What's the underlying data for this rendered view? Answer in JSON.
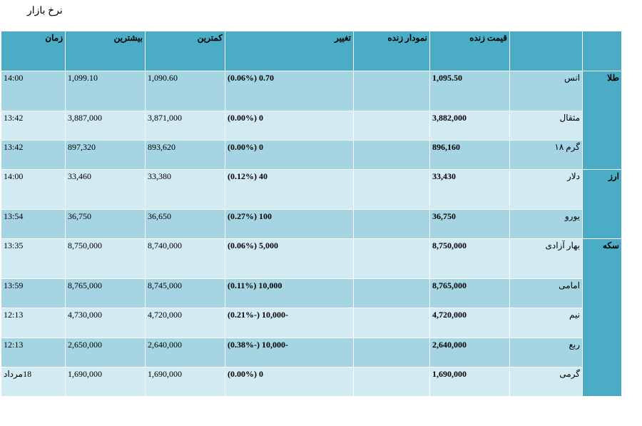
{
  "page": {
    "title": "نرخ بازار"
  },
  "table": {
    "headers": {
      "category": "",
      "item": "",
      "live_price": "قیمت زنده",
      "live_chart": "نمودار زنده",
      "change": "تغییر",
      "low": "کمترین",
      "high": "بیشترین",
      "time": "زمان"
    },
    "groups": [
      {
        "label": "طلا"
      },
      {
        "label": "ارز"
      },
      {
        "label": "سکه"
      }
    ],
    "rows": [
      {
        "name": "انس",
        "price": "1,095.50",
        "chart": "",
        "change": "0.70 (0.06%)",
        "low": "1,090.60",
        "high": "1,099.10",
        "time": "14:00"
      },
      {
        "name": "مثقال",
        "price": "3,882,000",
        "chart": "",
        "change": "0 (0.00%)",
        "low": "3,871,000",
        "high": "3,887,000",
        "time": "13:42"
      },
      {
        "name": "گرم ۱۸",
        "price": "896,160",
        "chart": "",
        "change": "0 (0.00%)",
        "low": "893,620",
        "high": "897,320",
        "time": "13:42"
      },
      {
        "name": "دلار",
        "price": "33,430",
        "chart": "",
        "change": "40 (0.12%)",
        "low": "33,380",
        "high": "33,460",
        "time": "14:00"
      },
      {
        "name": "یورو",
        "price": "36,750",
        "chart": "",
        "change": "100 (0.27%)",
        "low": "36,650",
        "high": "36,750",
        "time": "13:54"
      },
      {
        "name": "بهار آزادی",
        "price": "8,750,000",
        "chart": "",
        "change": "5,000 (0.06%)",
        "low": "8,740,000",
        "high": "8,750,000",
        "time": "13:35"
      },
      {
        "name": "امامی",
        "price": "8,765,000",
        "chart": "",
        "change": "10,000 (0.11%)",
        "low": "8,745,000",
        "high": "8,765,000",
        "time": "13:59"
      },
      {
        "name": "نیم",
        "price": "4,720,000",
        "chart": "",
        "change": "-10,000 (-0.21%)",
        "low": "4,720,000",
        "high": "4,730,000",
        "time": "12:13"
      },
      {
        "name": "ربع",
        "price": "2,640,000",
        "chart": "",
        "change": "-10,000 (-0.38%)",
        "low": "2,640,000",
        "high": "2,650,000",
        "time": "12:13"
      },
      {
        "name": "گرمی",
        "price": "1,690,000",
        "chart": "",
        "change": "0 (0.00%)",
        "low": "1,690,000",
        "high": "1,690,000",
        "time": "18مرداد"
      }
    ]
  },
  "colors": {
    "header": "#4bacc6",
    "row_dark": "#a5d5e2",
    "row_light": "#d2eaf1"
  }
}
